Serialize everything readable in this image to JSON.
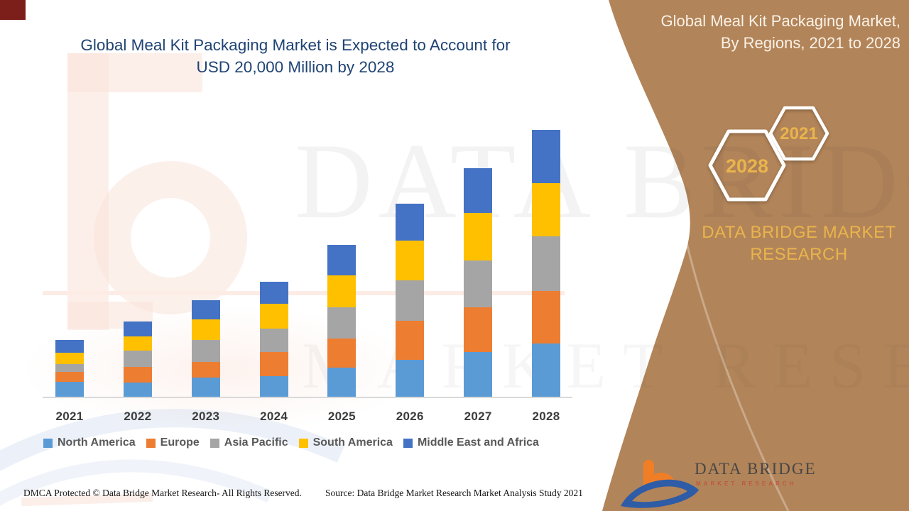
{
  "header": {
    "title_line1": "Global Meal Kit Packaging Market is Expected to Account for",
    "title_line2": "USD 20,000 Million by 2028"
  },
  "sidebar": {
    "title_line1": "Global Meal Kit Packaging Market,",
    "title_line2": "By Regions, 2021 to 2028",
    "hexagon_labels": [
      "2028",
      "2021"
    ],
    "brand_line1": "DATA BRIDGE MARKET",
    "brand_line2": "RESEARCH",
    "logo": {
      "name": "DATA BRIDGE",
      "tagline": "MARKET RESEARCH"
    },
    "background_color": "#B28459",
    "gold_color": "#E9B44C"
  },
  "watermark": {
    "big_text": "DATA BRIDGE",
    "small_text": "MARKET RESEARCH"
  },
  "footer": {
    "left": "DMCA Protected © Data Bridge Market Research- All Rights Reserved.",
    "right": "Source: Data Bridge Market Research Market Analysis Study 2021"
  },
  "misc": {
    "corner_tag_color": "#7C1F1A"
  },
  "chart_data": {
    "type": "bar",
    "stacked": true,
    "unit": "USD Million",
    "title": "Global Meal Kit Packaging Market is Expected to Account for USD 20,000 Million by 2028",
    "categories": [
      "2021",
      "2022",
      "2023",
      "2024",
      "2025",
      "2026",
      "2027",
      "2028"
    ],
    "series": [
      {
        "name": "North America",
        "color": "#5B9BD5",
        "values": [
          1150,
          1130,
          1460,
          1570,
          2240,
          2820,
          3420,
          4040
        ]
      },
      {
        "name": "Europe",
        "color": "#ED7D31",
        "values": [
          750,
          1130,
          1190,
          1840,
          2190,
          2930,
          3310,
          3940
        ]
      },
      {
        "name": "Asia Pacific",
        "color": "#A5A5A5",
        "values": [
          600,
          1240,
          1630,
          1730,
          2290,
          2980,
          3520,
          4040
        ]
      },
      {
        "name": "South America",
        "color": "#FFC000",
        "values": [
          870,
          1080,
          1580,
          1890,
          2400,
          2980,
          3520,
          3990
        ]
      },
      {
        "name": "Middle East and Africa",
        "color": "#4472C4",
        "values": [
          920,
          1080,
          1410,
          1620,
          2290,
          2760,
          3360,
          3990
        ]
      }
    ],
    "totals": [
      4290,
      5660,
      7270,
      8650,
      11410,
      14470,
      17130,
      20000
    ],
    "ylim": [
      0,
      20000
    ],
    "gridlines": false,
    "y_axis_visible": false,
    "legend_position": "bottom"
  }
}
